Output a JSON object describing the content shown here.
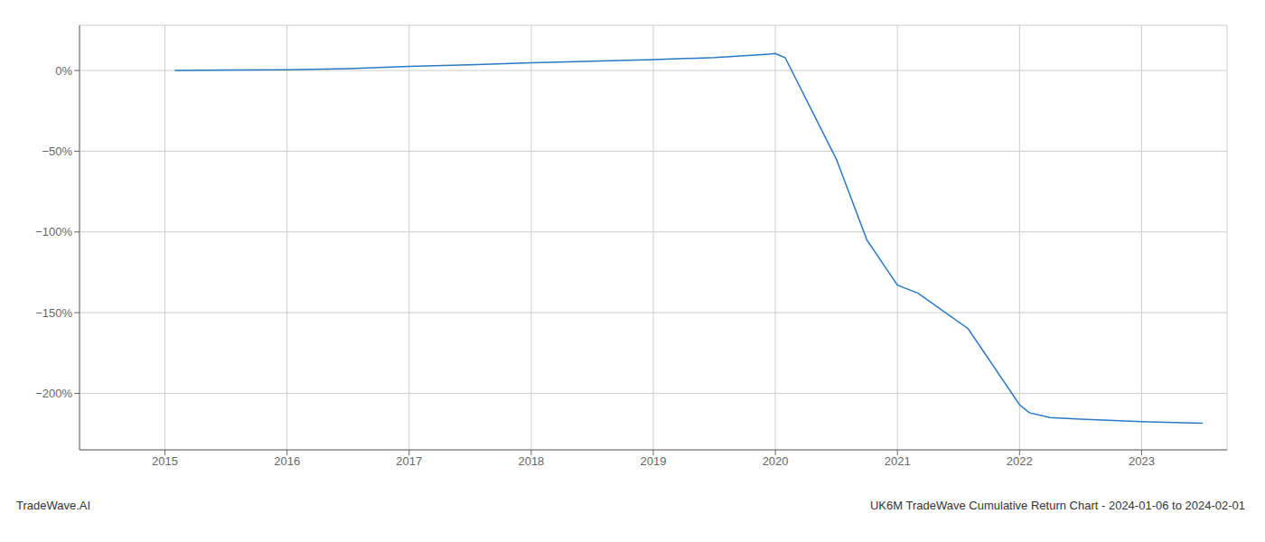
{
  "chart_data": {
    "type": "line",
    "x": [
      2015.08,
      2016.0,
      2016.5,
      2017.0,
      2017.5,
      2018.0,
      2018.5,
      2019.0,
      2019.5,
      2019.92,
      2020.0,
      2020.08,
      2020.5,
      2020.75,
      2021.0,
      2021.17,
      2021.58,
      2022.0,
      2022.08,
      2022.25,
      2022.5,
      2023.0,
      2023.5
    ],
    "values": [
      0.0,
      0.5,
      1.2,
      2.5,
      3.5,
      4.8,
      5.8,
      6.8,
      8.0,
      10.0,
      10.5,
      8.0,
      -55.0,
      -105.0,
      -133.0,
      -138.0,
      -160.0,
      -207.0,
      -212.0,
      -215.0,
      -216.0,
      -217.5,
      -218.5
    ],
    "color": "#2878c8",
    "xlim": [
      2014.3,
      2023.7
    ],
    "xticks": [
      2015,
      2016,
      2017,
      2018,
      2019,
      2020,
      2021,
      2022,
      2023
    ],
    "ylim": [
      -235,
      28
    ],
    "yticks": [
      {
        "value": 0,
        "label": "0%"
      },
      {
        "value": -50,
        "label": "−50%"
      },
      {
        "value": -100,
        "label": "−100%"
      },
      {
        "value": -150,
        "label": "−150%"
      },
      {
        "value": -200,
        "label": "−200%"
      }
    ],
    "grid": true,
    "annotations": [
      "TradeWave.AI",
      "UK6M TradeWave Cumulative Return Chart - 2024-01-06 to 2024-02-01"
    ]
  }
}
